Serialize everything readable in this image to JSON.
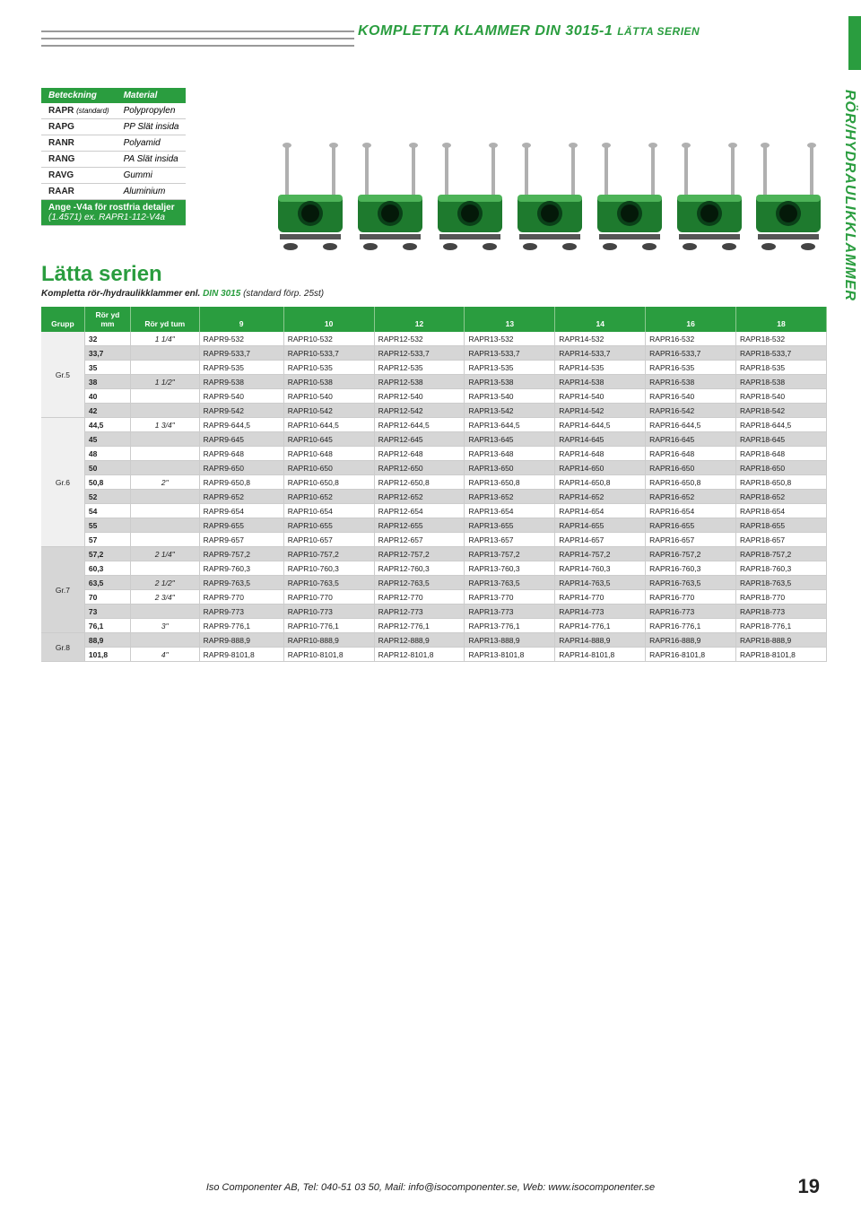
{
  "page_title_main": "KOMPLETTA KLAMMER DIN 3015-1",
  "page_title_sub": "LÄTTA SERIEN",
  "side_label": "RÖR/HYDRAULIKKLAMMER",
  "material": {
    "header_code": "Beteckning",
    "header_mat": "Material",
    "rows": [
      {
        "code": "RAPR",
        "small": "(standard)",
        "mat": "Polypropylen"
      },
      {
        "code": "RAPG",
        "small": "",
        "mat": "PP Slät insida"
      },
      {
        "code": "RANR",
        "small": "",
        "mat": "Polyamid"
      },
      {
        "code": "RANG",
        "small": "",
        "mat": "PA Slät insida"
      },
      {
        "code": "RAVG",
        "small": "",
        "mat": "Gummi"
      },
      {
        "code": "RAAR",
        "small": "",
        "mat": "Aluminium"
      }
    ],
    "note1": "Ange -V4a för rostfria detaljer",
    "note2": "(1.4571) ex. RAPR1-112-V4a"
  },
  "series_title": "Lätta serien",
  "series_sub_pre": "Kompletta rör-/hydraulikklammer enl. ",
  "series_sub_din": "DIN 3015",
  "series_sub_post": " (standard förp. 25st)",
  "table": {
    "header_grupp": "Grupp",
    "header_mm_line1": "Rör yd",
    "header_mm_line2": "mm",
    "header_tum": "Rör yd tum",
    "col_nums": [
      "9",
      "10",
      "12",
      "13",
      "14",
      "16",
      "18"
    ],
    "prefixes": [
      "RAPR9-",
      "RAPR10-",
      "RAPR12-",
      "RAPR13-",
      "RAPR14-",
      "RAPR16-",
      "RAPR18-"
    ],
    "groups": [
      {
        "name": "Gr.5",
        "rows": [
          {
            "alt": false,
            "mm": "32",
            "tum": "1 1/4\"",
            "suffix": "532"
          },
          {
            "alt": true,
            "mm": "33,7",
            "tum": "",
            "suffix": "533,7"
          },
          {
            "alt": false,
            "mm": "35",
            "tum": "",
            "suffix": "535"
          },
          {
            "alt": true,
            "mm": "38",
            "tum": "1 1/2\"",
            "suffix": "538"
          },
          {
            "alt": false,
            "mm": "40",
            "tum": "",
            "suffix": "540"
          },
          {
            "alt": true,
            "mm": "42",
            "tum": "",
            "suffix": "542"
          }
        ]
      },
      {
        "name": "Gr.6",
        "rows": [
          {
            "alt": false,
            "mm": "44,5",
            "tum": "1 3/4\"",
            "suffix": "644,5"
          },
          {
            "alt": true,
            "mm": "45",
            "tum": "",
            "suffix": "645"
          },
          {
            "alt": false,
            "mm": "48",
            "tum": "",
            "suffix": "648"
          },
          {
            "alt": true,
            "mm": "50",
            "tum": "",
            "suffix": "650"
          },
          {
            "alt": false,
            "mm": "50,8",
            "tum": "2\"",
            "suffix": "650,8"
          },
          {
            "alt": true,
            "mm": "52",
            "tum": "",
            "suffix": "652"
          },
          {
            "alt": false,
            "mm": "54",
            "tum": "",
            "suffix": "654"
          },
          {
            "alt": true,
            "mm": "55",
            "tum": "",
            "suffix": "655"
          },
          {
            "alt": false,
            "mm": "57",
            "tum": "",
            "suffix": "657"
          }
        ]
      },
      {
        "name": "Gr.7",
        "rows": [
          {
            "alt": true,
            "mm": "57,2",
            "tum": "2 1/4\"",
            "suffix": "757,2"
          },
          {
            "alt": false,
            "mm": "60,3",
            "tum": "",
            "suffix": "760,3"
          },
          {
            "alt": true,
            "mm": "63,5",
            "tum": "2 1/2\"",
            "suffix": "763,5"
          },
          {
            "alt": false,
            "mm": "70",
            "tum": "2 3/4\"",
            "suffix": "770"
          },
          {
            "alt": true,
            "mm": "73",
            "tum": "",
            "suffix": "773"
          },
          {
            "alt": false,
            "mm": "76,1",
            "tum": "3\"",
            "suffix": "776,1"
          }
        ]
      },
      {
        "name": "Gr.8",
        "rows": [
          {
            "alt": true,
            "mm": "88,9",
            "tum": "",
            "suffix": "888,9"
          },
          {
            "alt": false,
            "mm": "101,8",
            "tum": "4\"",
            "suffix": "8101,8"
          }
        ]
      }
    ]
  },
  "footer_text": "Iso Componenter AB, Tel: 040-51 03 50, Mail: info@isocomponenter.se, Web: www.isocomponenter.se",
  "page_number": "19",
  "colors": {
    "brand_green": "#2a9d3f",
    "row_alt": "#d6d6d6",
    "clamp_body": "#1e7a2e",
    "clamp_highlight": "#4db358",
    "bolt": "#b0b0b0"
  }
}
